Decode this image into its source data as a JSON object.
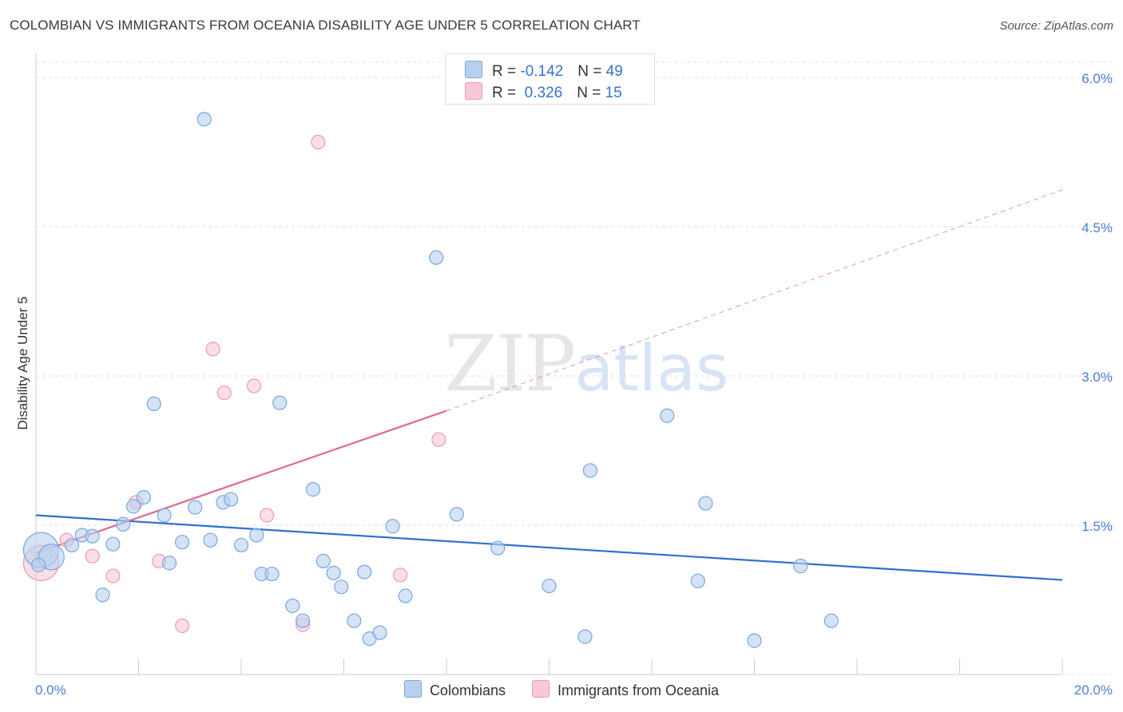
{
  "title": "COLOMBIAN VS IMMIGRANTS FROM OCEANIA DISABILITY AGE UNDER 5 CORRELATION CHART",
  "source": "Source: ZipAtlas.com",
  "watermark": {
    "zip": "ZIP",
    "atlas": "atlas"
  },
  "legend": {
    "row1": {
      "r_label": "R = ",
      "r_value": "-0.142",
      "n_label": "N = ",
      "n_value": "49"
    },
    "row2": {
      "r_label": "R = ",
      "r_value": " 0.326",
      "n_label": "N = ",
      "n_value": "15"
    }
  },
  "colors": {
    "colombian_fill": "#b8d0f0",
    "colombian_stroke": "#7aa6e0",
    "colombian_line": "#2f6fcf",
    "oceania_fill": "#f8c8d6",
    "oceania_stroke": "#ef9ab5",
    "oceania_line": "#e06890",
    "grid": "#dddddd",
    "axis": "#cccccc"
  },
  "chart_data": {
    "type": "scatter",
    "title": "COLOMBIAN VS IMMIGRANTS FROM OCEANIA DISABILITY AGE UNDER 5 CORRELATION CHART",
    "xlabel": "",
    "ylabel": "Disability Age Under 5",
    "xlim": [
      0,
      20
    ],
    "ylim": [
      0,
      6.2
    ],
    "x_tick_labels": [
      "0.0%",
      "20.0%"
    ],
    "y_ticks": [
      1.5,
      3.0,
      4.5,
      6.0
    ],
    "y_tick_labels": [
      "1.5%",
      "3.0%",
      "4.5%",
      "6.0%"
    ],
    "grid": true,
    "legend_position": "top-center",
    "series": [
      {
        "name": "Colombians",
        "R": -0.142,
        "N": 49,
        "trend": {
          "x": [
            0,
            20
          ],
          "y": [
            1.6,
            0.95
          ]
        },
        "points": [
          {
            "x": 0.1,
            "y": 1.25,
            "s": 22
          },
          {
            "x": 0.3,
            "y": 1.18,
            "s": 16
          },
          {
            "x": 0.7,
            "y": 1.3,
            "s": 10
          },
          {
            "x": 0.9,
            "y": 1.4,
            "s": 10
          },
          {
            "x": 1.1,
            "y": 1.39,
            "s": 10
          },
          {
            "x": 1.3,
            "y": 0.8,
            "s": 10
          },
          {
            "x": 1.5,
            "y": 1.31,
            "s": 10
          },
          {
            "x": 1.7,
            "y": 1.51,
            "s": 10
          },
          {
            "x": 1.9,
            "y": 1.69,
            "s": 10
          },
          {
            "x": 2.1,
            "y": 1.78,
            "s": 10
          },
          {
            "x": 2.3,
            "y": 2.72,
            "s": 10
          },
          {
            "x": 2.5,
            "y": 1.6,
            "s": 10
          },
          {
            "x": 2.6,
            "y": 1.12,
            "s": 10
          },
          {
            "x": 2.85,
            "y": 1.33,
            "s": 10
          },
          {
            "x": 3.1,
            "y": 1.68,
            "s": 10
          },
          {
            "x": 3.28,
            "y": 5.58,
            "s": 10
          },
          {
            "x": 3.4,
            "y": 1.35,
            "s": 10
          },
          {
            "x": 3.65,
            "y": 1.73,
            "s": 10
          },
          {
            "x": 3.8,
            "y": 1.76,
            "s": 10
          },
          {
            "x": 4.0,
            "y": 1.3,
            "s": 10
          },
          {
            "x": 4.3,
            "y": 1.4,
            "s": 10
          },
          {
            "x": 4.4,
            "y": 1.01,
            "s": 10
          },
          {
            "x": 4.6,
            "y": 1.01,
            "s": 10
          },
          {
            "x": 4.75,
            "y": 2.73,
            "s": 10
          },
          {
            "x": 5.0,
            "y": 0.69,
            "s": 10
          },
          {
            "x": 5.2,
            "y": 0.54,
            "s": 10
          },
          {
            "x": 5.4,
            "y": 1.86,
            "s": 10
          },
          {
            "x": 5.6,
            "y": 1.14,
            "s": 10
          },
          {
            "x": 5.8,
            "y": 1.02,
            "s": 10
          },
          {
            "x": 5.95,
            "y": 0.88,
            "s": 10
          },
          {
            "x": 6.2,
            "y": 0.54,
            "s": 10
          },
          {
            "x": 6.4,
            "y": 1.03,
            "s": 10
          },
          {
            "x": 6.5,
            "y": 0.36,
            "s": 10
          },
          {
            "x": 6.7,
            "y": 0.42,
            "s": 10
          },
          {
            "x": 6.95,
            "y": 1.49,
            "s": 10
          },
          {
            "x": 7.2,
            "y": 0.79,
            "s": 10
          },
          {
            "x": 7.8,
            "y": 4.19,
            "s": 10
          },
          {
            "x": 8.2,
            "y": 1.61,
            "s": 10
          },
          {
            "x": 9.0,
            "y": 1.27,
            "s": 10
          },
          {
            "x": 10.0,
            "y": 0.89,
            "s": 10
          },
          {
            "x": 10.7,
            "y": 0.38,
            "s": 10
          },
          {
            "x": 10.8,
            "y": 2.05,
            "s": 10
          },
          {
            "x": 12.3,
            "y": 2.6,
            "s": 10
          },
          {
            "x": 12.9,
            "y": 0.94,
            "s": 10
          },
          {
            "x": 13.05,
            "y": 1.72,
            "s": 10
          },
          {
            "x": 14.0,
            "y": 0.34,
            "s": 10
          },
          {
            "x": 14.9,
            "y": 1.09,
            "s": 10
          },
          {
            "x": 15.5,
            "y": 0.54,
            "s": 10
          },
          {
            "x": 0.05,
            "y": 1.1,
            "s": 10
          }
        ]
      },
      {
        "name": "Immigrants from Oceania",
        "R": 0.326,
        "N": 15,
        "trend": {
          "x": [
            0,
            8
          ],
          "y": [
            1.22,
            2.65
          ]
        },
        "trend_extended": {
          "x": [
            8,
            20
          ],
          "y": [
            2.65,
            4.87
          ]
        },
        "points": [
          {
            "x": 0.1,
            "y": 1.12,
            "s": 22
          },
          {
            "x": 0.6,
            "y": 1.35,
            "s": 10
          },
          {
            "x": 1.1,
            "y": 1.19,
            "s": 10
          },
          {
            "x": 1.5,
            "y": 0.99,
            "s": 10
          },
          {
            "x": 1.95,
            "y": 1.73,
            "s": 10
          },
          {
            "x": 2.4,
            "y": 1.14,
            "s": 10
          },
          {
            "x": 2.85,
            "y": 0.49,
            "s": 10
          },
          {
            "x": 3.45,
            "y": 3.27,
            "s": 10
          },
          {
            "x": 3.67,
            "y": 2.83,
            "s": 10
          },
          {
            "x": 4.25,
            "y": 2.9,
            "s": 10
          },
          {
            "x": 4.5,
            "y": 1.6,
            "s": 10
          },
          {
            "x": 5.2,
            "y": 0.5,
            "s": 10
          },
          {
            "x": 5.5,
            "y": 5.35,
            "s": 10
          },
          {
            "x": 7.1,
            "y": 1.0,
            "s": 10
          },
          {
            "x": 7.85,
            "y": 2.36,
            "s": 10
          }
        ]
      }
    ]
  }
}
